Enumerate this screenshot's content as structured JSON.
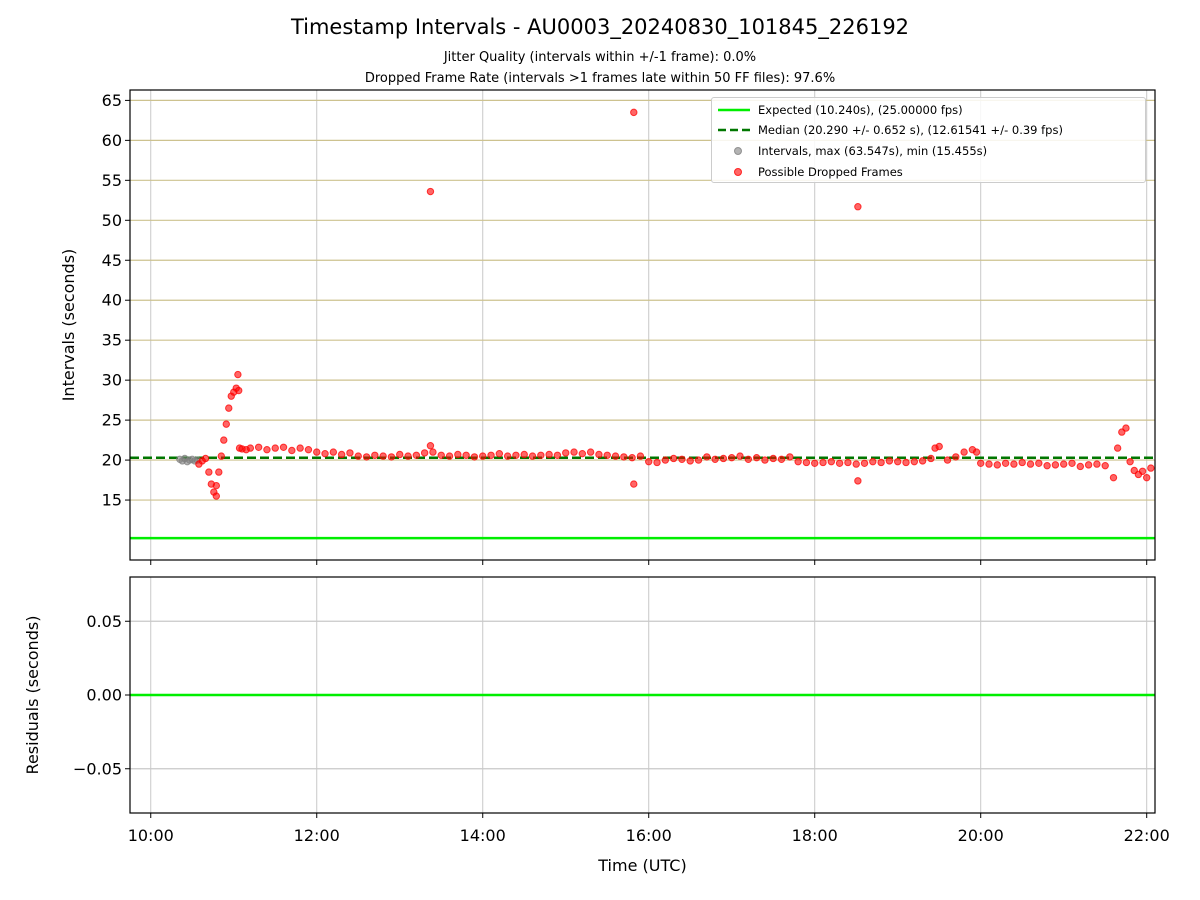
{
  "title": "Timestamp Intervals - AU0003_20240830_101845_226192",
  "subtitle_1": "Jitter Quality (intervals within +/-1 frame): 0.0%",
  "subtitle_2": "Dropped Frame Rate (intervals >1 frames late within 50 FF files): 97.6%",
  "legend": {
    "placement": "top-right",
    "items": [
      {
        "label": "Expected (10.240s), (25.00000 fps)",
        "kind": "line",
        "color": "#00ee00"
      },
      {
        "label": "Median (20.290 +/- 0.652 s), (12.61541 +/- 0.39 fps)",
        "kind": "dashed-line",
        "color": "#007700"
      },
      {
        "label": "Intervals, max (63.547s), min (15.455s)",
        "kind": "point",
        "color": "#808080"
      },
      {
        "label": "Possible Dropped Frames",
        "kind": "point",
        "color": "#ff0000"
      }
    ]
  },
  "chart_data": [
    {
      "type": "scatter",
      "panel": "intervals",
      "ylabel": "Intervals (seconds)",
      "xlabel": "",
      "xlim": [
        9.75,
        22.1
      ],
      "ylim": [
        7.5,
        66.3
      ],
      "ytick_labels": [
        "15",
        "20",
        "25",
        "30",
        "35",
        "40",
        "45",
        "50",
        "55",
        "60",
        "65"
      ],
      "ytick_values": [
        15,
        20,
        25,
        30,
        35,
        40,
        45,
        50,
        55,
        60,
        65
      ],
      "xtick_values": [
        10,
        12,
        14,
        16,
        18,
        20,
        22
      ],
      "grid": true,
      "expected_line": {
        "y": 10.24,
        "color": "#00ee00"
      },
      "median_line": {
        "y": 20.29,
        "color": "#007700"
      },
      "series": [
        {
          "label": "Intervals, max (63.547s), min (15.455s)",
          "color": "#808080",
          "x": [
            10.35,
            10.38,
            10.41,
            10.44,
            10.47,
            10.5,
            10.53,
            10.56
          ],
          "y": [
            20.1,
            19.9,
            20.2,
            19.8,
            20.0,
            20.1,
            19.9,
            20.0
          ]
        },
        {
          "label": "Possible Dropped Frames",
          "color": "#ff0000",
          "x": [
            10.58,
            10.62,
            10.66,
            10.7,
            10.73,
            10.76,
            10.79,
            10.82,
            10.85,
            10.88,
            10.91,
            10.94,
            10.97,
            11.0,
            11.03,
            11.06,
            11.07,
            11.1,
            11.15,
            11.2,
            11.3,
            11.4,
            11.5,
            11.6,
            11.7,
            11.8,
            11.9,
            12.0,
            12.1,
            12.2,
            12.3,
            12.4,
            12.5,
            12.6,
            12.7,
            12.8,
            12.9,
            13.0,
            13.1,
            13.2,
            13.3,
            13.4,
            13.5,
            13.6,
            13.7,
            13.8,
            13.9,
            14.0,
            14.1,
            14.2,
            14.3,
            14.4,
            14.5,
            14.6,
            14.7,
            14.8,
            14.9,
            15.0,
            15.1,
            15.2,
            15.3,
            15.4,
            15.5,
            15.6,
            15.7,
            15.8,
            15.9,
            16.0,
            16.1,
            16.2,
            16.3,
            16.4,
            16.5,
            16.6,
            16.7,
            16.8,
            16.9,
            17.0,
            17.1,
            17.2,
            17.3,
            17.4,
            17.5,
            17.6,
            17.7,
            17.8,
            17.9,
            18.0,
            18.1,
            18.2,
            18.3,
            18.4,
            18.5,
            18.6,
            18.7,
            18.8,
            18.9,
            19.0,
            19.1,
            19.2,
            19.3,
            19.4,
            19.45,
            19.5,
            19.6,
            19.7,
            19.8,
            19.9,
            19.95,
            20.0,
            20.1,
            20.2,
            20.3,
            20.4,
            20.5,
            20.6,
            20.7,
            20.8,
            20.9,
            21.0,
            21.1,
            21.2,
            21.3,
            21.4,
            21.5,
            21.6,
            21.65,
            21.7,
            21.75,
            21.8,
            21.85,
            21.9,
            21.95,
            22.0,
            22.05,
            13.37,
            13.37,
            15.82,
            15.82,
            18.52,
            18.52,
            11.05,
            10.79
          ],
          "y": [
            19.5,
            19.9,
            20.2,
            18.5,
            17.0,
            16.0,
            16.8,
            18.5,
            20.5,
            22.5,
            24.5,
            26.5,
            28.0,
            28.5,
            29.0,
            28.7,
            21.5,
            21.4,
            21.3,
            21.5,
            21.6,
            21.3,
            21.5,
            21.6,
            21.2,
            21.5,
            21.3,
            21.0,
            20.8,
            21.0,
            20.7,
            20.9,
            20.5,
            20.4,
            20.6,
            20.5,
            20.4,
            20.7,
            20.5,
            20.6,
            20.9,
            21.0,
            20.6,
            20.5,
            20.7,
            20.6,
            20.4,
            20.5,
            20.6,
            20.8,
            20.5,
            20.6,
            20.7,
            20.5,
            20.6,
            20.7,
            20.6,
            20.9,
            21.0,
            20.8,
            21.0,
            20.7,
            20.6,
            20.5,
            20.4,
            20.3,
            20.5,
            19.8,
            19.7,
            20.0,
            20.2,
            20.1,
            19.9,
            20.0,
            20.4,
            20.1,
            20.2,
            20.3,
            20.5,
            20.1,
            20.3,
            20.0,
            20.2,
            20.1,
            20.4,
            19.8,
            19.7,
            19.6,
            19.7,
            19.8,
            19.6,
            19.7,
            19.5,
            19.6,
            19.8,
            19.7,
            19.9,
            19.8,
            19.7,
            19.8,
            19.9,
            20.2,
            21.5,
            21.7,
            20.0,
            20.4,
            21.0,
            21.3,
            21.0,
            19.6,
            19.5,
            19.4,
            19.6,
            19.5,
            19.7,
            19.5,
            19.6,
            19.3,
            19.4,
            19.5,
            19.6,
            19.2,
            19.4,
            19.5,
            19.3,
            17.8,
            21.5,
            23.5,
            24.0,
            19.8,
            18.7,
            18.2,
            18.6,
            17.8,
            19.0,
            53.6,
            21.8,
            63.5,
            17.0,
            51.7,
            17.4,
            30.7,
            15.5
          ]
        }
      ]
    },
    {
      "type": "line",
      "panel": "residuals",
      "ylabel": "Residuals (seconds)",
      "xlabel": "Time (UTC)",
      "xlim": [
        9.75,
        22.1
      ],
      "ylim": [
        -0.08,
        0.08
      ],
      "ytick_labels": [
        "0.05",
        "0.00",
        "−0.05"
      ],
      "ytick_values": [
        0.05,
        0.0,
        -0.05
      ],
      "xtick_values": [
        10,
        12,
        14,
        16,
        18,
        20,
        22
      ],
      "xtick_labels": [
        "10:00",
        "12:00",
        "14:00",
        "16:00",
        "18:00",
        "20:00",
        "22:00"
      ],
      "grid": true,
      "series": [
        {
          "label": "",
          "color": "#00ee00",
          "x": [
            9.75,
            22.1
          ],
          "y": [
            0.0,
            0.0
          ]
        }
      ]
    }
  ]
}
